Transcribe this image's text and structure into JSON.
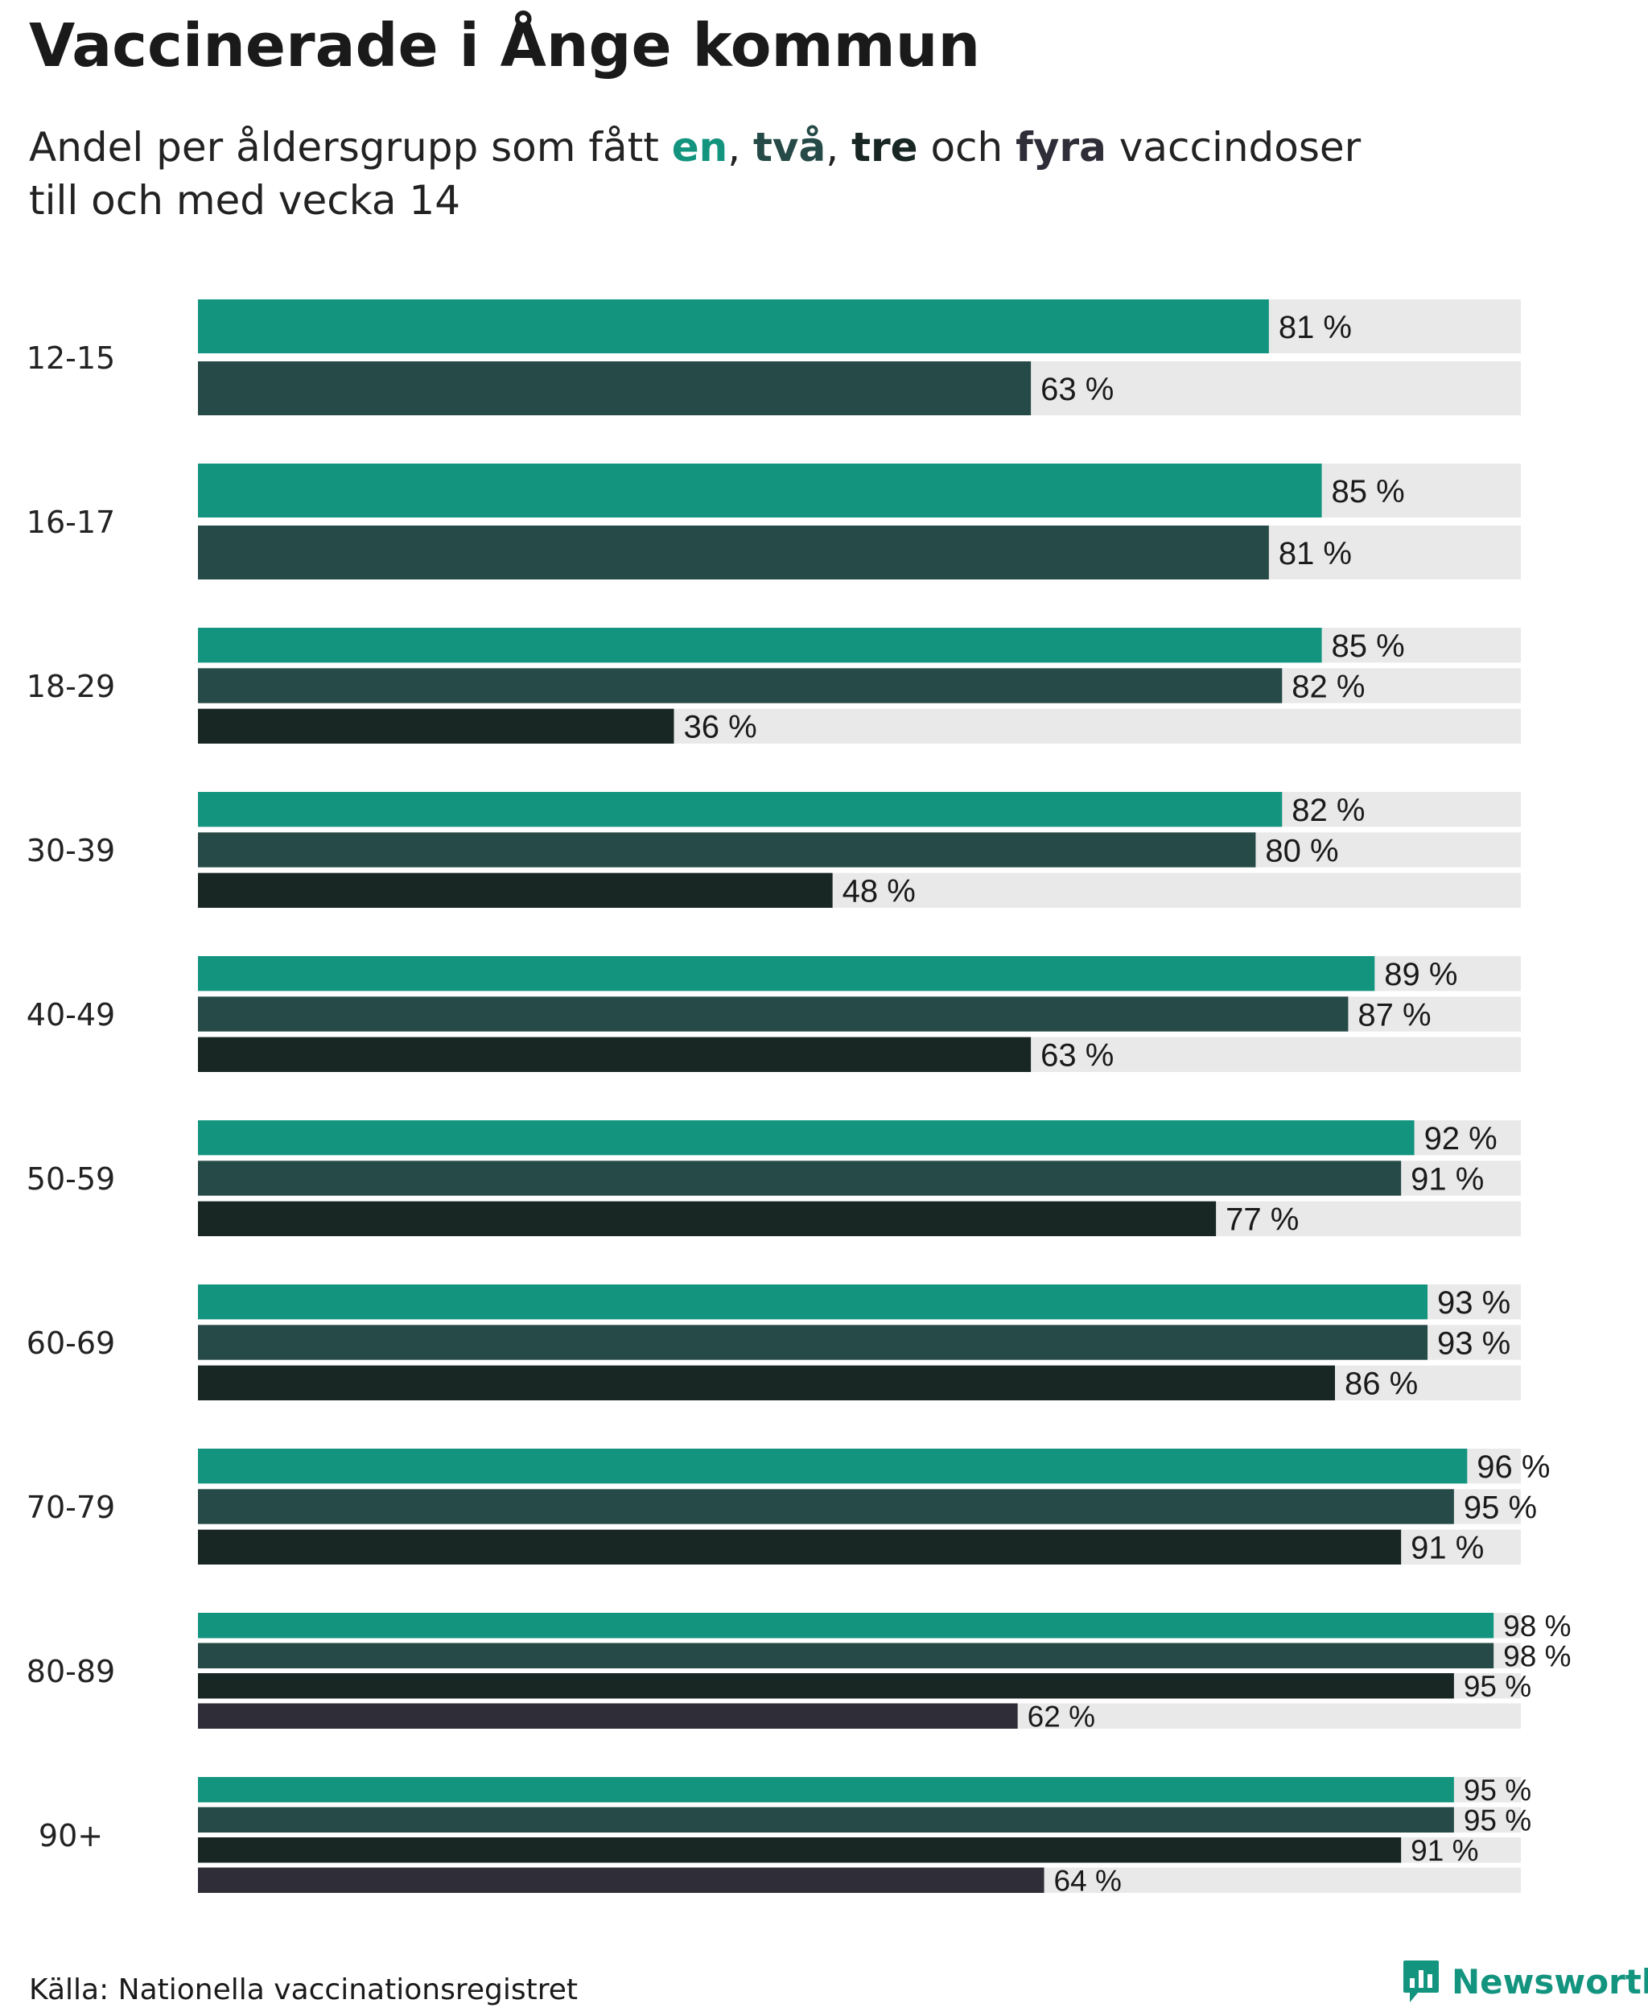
{
  "header": {
    "title": "Vaccinerade i Ånge kommun",
    "subtitle_pre": "Andel per åldersgrupp som fått ",
    "dose1": "en",
    "sep1": ", ",
    "dose2": "två",
    "sep2": ", ",
    "dose3": "tre",
    "sep3": " och ",
    "dose4": "fyra",
    "subtitle_post": " vaccindoser",
    "subtitle_line2": "till och med vecka 14"
  },
  "colors": {
    "dose1": "#13947f",
    "dose2": "#264a47",
    "dose3": "#182624",
    "dose4": "#2e2d38",
    "track": "#e9e9e9"
  },
  "chart_data": {
    "type": "bar",
    "orientation": "horizontal",
    "title": "Vaccinerade i Ånge kommun",
    "xlabel": "",
    "ylabel": "",
    "xlim": [
      0,
      100
    ],
    "unit_suffix": " %",
    "categories": [
      "12-15",
      "16-17",
      "18-29",
      "30-39",
      "40-49",
      "50-59",
      "60-69",
      "70-79",
      "80-89",
      "90+"
    ],
    "series": [
      {
        "name": "en",
        "values": [
          81,
          85,
          85,
          82,
          89,
          92,
          93,
          96,
          98,
          95
        ]
      },
      {
        "name": "två",
        "values": [
          63,
          81,
          82,
          80,
          87,
          91,
          93,
          95,
          98,
          95
        ]
      },
      {
        "name": "tre",
        "values": [
          null,
          null,
          36,
          48,
          63,
          77,
          86,
          91,
          95,
          91
        ]
      },
      {
        "name": "fyra",
        "values": [
          null,
          null,
          null,
          null,
          null,
          null,
          null,
          null,
          62,
          64
        ]
      }
    ]
  },
  "footer": {
    "source": "Källa: Nationella vaccinationsregistret",
    "brand": "Newsworthy",
    "brand_icon": "newsworthy-logo-icon"
  }
}
